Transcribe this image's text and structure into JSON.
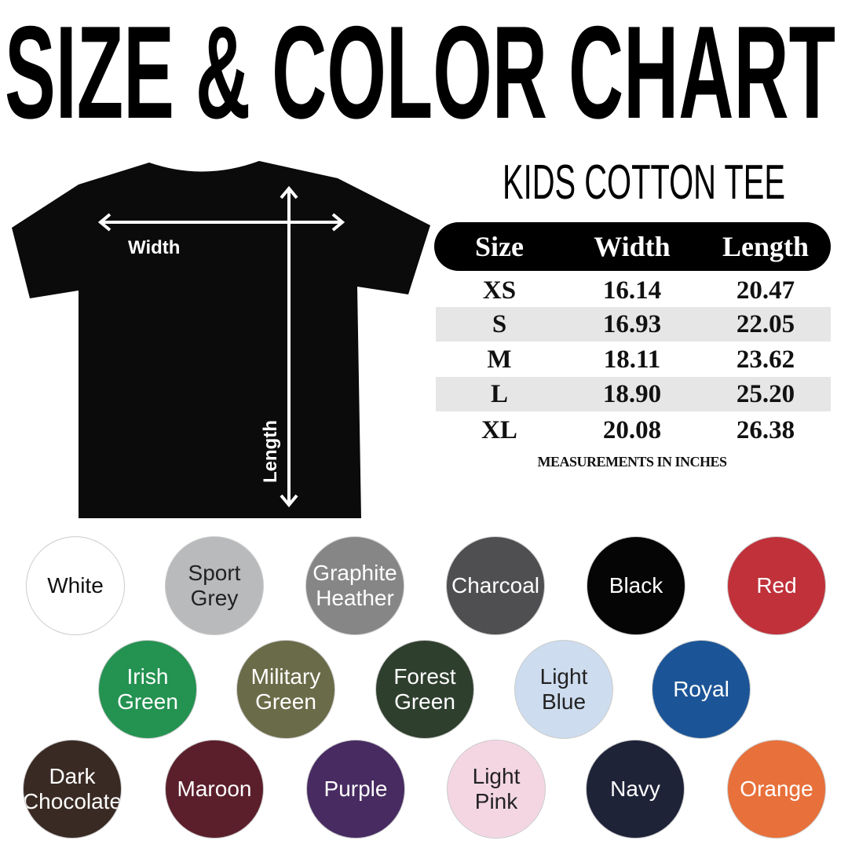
{
  "title": "SIZE & COLOR CHART",
  "subtitle": "KIDS COTTON TEE",
  "shirt": {
    "width_label": "Width",
    "length_label": "Length"
  },
  "table": {
    "headers": [
      "Size",
      "Width",
      "Length"
    ],
    "rows": [
      [
        "XS",
        "16.14",
        "20.47"
      ],
      [
        "S",
        "16.93",
        "22.05"
      ],
      [
        "M",
        "18.11",
        "23.62"
      ],
      [
        "L",
        "18.90",
        "25.20"
      ],
      [
        "XL",
        "20.08",
        "26.38"
      ]
    ],
    "note": "MEASUREMENTS IN INCHES"
  },
  "colors": [
    {
      "label": "White",
      "hex": "#ffffff",
      "text": "#111111"
    },
    {
      "label": "Sport\nGrey",
      "hex": "#b8babc",
      "text": "#222222"
    },
    {
      "label": "Graphite\nHeather",
      "hex": "#868686",
      "text": "#ffffff"
    },
    {
      "label": "Charcoal",
      "hex": "#4f4f51",
      "text": "#ffffff"
    },
    {
      "label": "Black",
      "hex": "#050505",
      "text": "#ffffff"
    },
    {
      "label": "Red",
      "hex": "#c0313a",
      "text": "#ffffff"
    },
    {
      "label": "Irish\nGreen",
      "hex": "#249251",
      "text": "#ffffff"
    },
    {
      "label": "Military\nGreen",
      "hex": "#6a6b48",
      "text": "#ffffff"
    },
    {
      "label": "Forest\nGreen",
      "hex": "#2f3f2e",
      "text": "#ffffff"
    },
    {
      "label": "Light\nBlue",
      "hex": "#cddcee",
      "text": "#222222"
    },
    {
      "label": "Royal",
      "hex": "#1c5597",
      "text": "#ffffff"
    },
    {
      "label": "Dark\nChocolate",
      "hex": "#3a2a24",
      "text": "#ffffff"
    },
    {
      "label": "Maroon",
      "hex": "#5b1f2b",
      "text": "#ffffff"
    },
    {
      "label": "Purple",
      "hex": "#472b61",
      "text": "#ffffff"
    },
    {
      "label": "Light\nPink",
      "hex": "#f4d6e3",
      "text": "#222222"
    },
    {
      "label": "Navy",
      "hex": "#1f2338",
      "text": "#ffffff"
    },
    {
      "label": "Orange",
      "hex": "#e8703a",
      "text": "#ffffff"
    }
  ]
}
